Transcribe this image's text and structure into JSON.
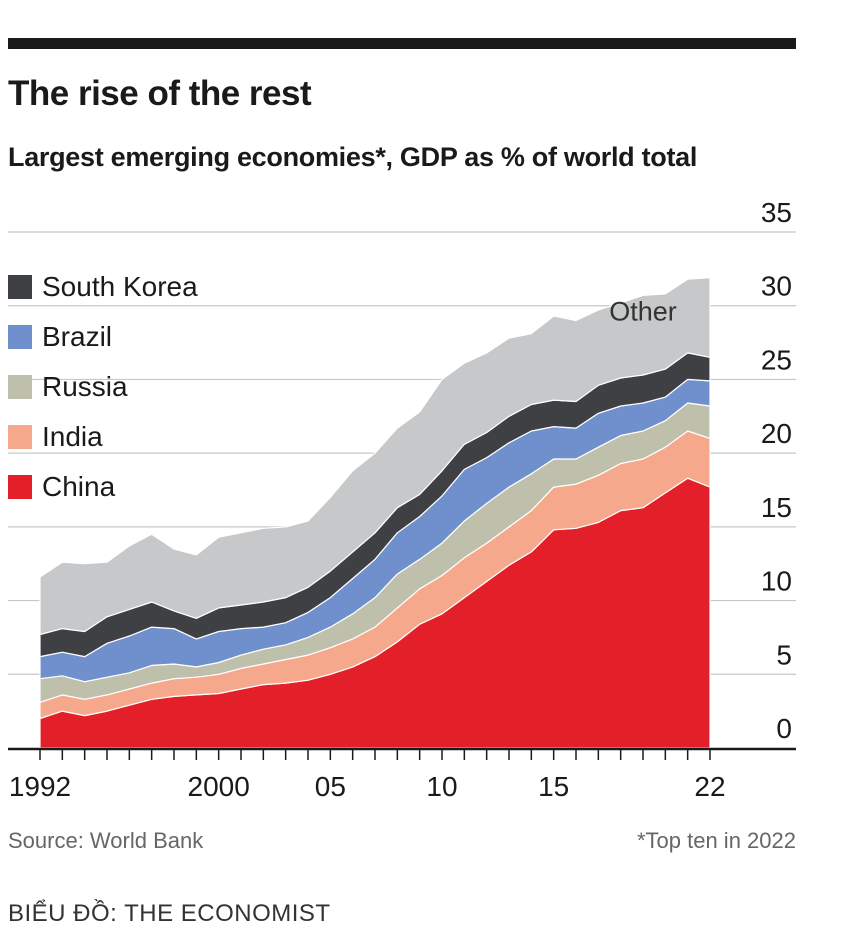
{
  "header": {
    "title": "The rise of the rest",
    "subtitle": "Largest emerging economies*, GDP as % of world total"
  },
  "footer": {
    "source": "Source: World Bank",
    "footnote": "*Top ten in 2022",
    "credit": "BIỂU ĐỒ: THE ECONOMIST"
  },
  "colors": {
    "China": "#e3202a",
    "India": "#f5a88c",
    "Russia": "#bfc0ab",
    "Brazil": "#6f90cc",
    "South Korea": "#3f4043",
    "Other": "#c6c8ca"
  },
  "legend": [
    {
      "name": "South Korea",
      "color": "#3f4043"
    },
    {
      "name": "Brazil",
      "color": "#6f90cc"
    },
    {
      "name": "Russia",
      "color": "#bfc0ab"
    },
    {
      "name": "India",
      "color": "#f5a88c"
    },
    {
      "name": "China",
      "color": "#e3202a"
    }
  ],
  "chart_data": {
    "type": "area",
    "stacked": true,
    "title": "The rise of the rest",
    "subtitle": "Largest emerging economies*, GDP as % of world total",
    "x": [
      1992,
      1993,
      1994,
      1995,
      1996,
      1997,
      1998,
      1999,
      2000,
      2001,
      2002,
      2003,
      2004,
      2005,
      2006,
      2007,
      2008,
      2009,
      2010,
      2011,
      2012,
      2013,
      2014,
      2015,
      2016,
      2017,
      2018,
      2019,
      2020,
      2021,
      2022
    ],
    "x_tick_labels": [
      {
        "x": 1992,
        "label": "1992"
      },
      {
        "x": 2000,
        "label": "2000"
      },
      {
        "x": 2005,
        "label": "05"
      },
      {
        "x": 2010,
        "label": "10"
      },
      {
        "x": 2015,
        "label": "15"
      },
      {
        "x": 2022,
        "label": "22"
      }
    ],
    "ylim": [
      0,
      35
    ],
    "yticks": [
      0,
      5,
      10,
      15,
      20,
      25,
      30,
      35
    ],
    "grid": true,
    "legend_position": "top-left",
    "annotation": "Other",
    "series": [
      {
        "name": "China",
        "values": [
          2.0,
          2.5,
          2.2,
          2.5,
          2.9,
          3.3,
          3.5,
          3.6,
          3.7,
          4.0,
          4.3,
          4.4,
          4.6,
          5.0,
          5.5,
          6.2,
          7.2,
          8.4,
          9.1,
          10.2,
          11.3,
          12.4,
          13.3,
          14.8,
          14.9,
          15.3,
          16.1,
          16.3,
          17.3,
          18.3,
          17.7
        ]
      },
      {
        "name": "India",
        "values": [
          1.1,
          1.1,
          1.1,
          1.1,
          1.1,
          1.1,
          1.2,
          1.2,
          1.3,
          1.4,
          1.4,
          1.6,
          1.7,
          1.8,
          1.9,
          2.0,
          2.3,
          2.4,
          2.6,
          2.7,
          2.6,
          2.6,
          2.8,
          2.9,
          3.0,
          3.2,
          3.2,
          3.3,
          3.1,
          3.2,
          3.3
        ]
      },
      {
        "name": "Russia",
        "values": [
          1.6,
          1.3,
          1.2,
          1.2,
          1.1,
          1.2,
          1.0,
          0.7,
          0.8,
          0.9,
          1.0,
          1.0,
          1.2,
          1.4,
          1.7,
          2.0,
          2.3,
          2.0,
          2.2,
          2.5,
          2.7,
          2.7,
          2.5,
          1.9,
          1.7,
          1.9,
          1.9,
          1.9,
          1.8,
          1.9,
          2.2
        ]
      },
      {
        "name": "Brazil",
        "values": [
          1.5,
          1.6,
          1.7,
          2.3,
          2.5,
          2.6,
          2.4,
          1.9,
          2.1,
          1.8,
          1.5,
          1.5,
          1.7,
          2.0,
          2.4,
          2.6,
          2.8,
          2.9,
          3.2,
          3.5,
          3.1,
          3.0,
          2.9,
          2.2,
          2.1,
          2.3,
          2.0,
          1.9,
          1.6,
          1.6,
          1.7
        ]
      },
      {
        "name": "South Korea",
        "values": [
          1.5,
          1.6,
          1.7,
          1.8,
          1.8,
          1.7,
          1.2,
          1.4,
          1.6,
          1.6,
          1.7,
          1.7,
          1.7,
          1.8,
          1.8,
          1.8,
          1.7,
          1.5,
          1.7,
          1.7,
          1.7,
          1.8,
          1.8,
          1.8,
          1.8,
          1.9,
          1.9,
          1.9,
          1.9,
          1.8,
          1.6
        ]
      },
      {
        "name": "Other",
        "values": [
          3.9,
          4.5,
          4.6,
          3.7,
          4.3,
          4.6,
          4.2,
          4.3,
          4.8,
          4.9,
          5.0,
          4.8,
          4.5,
          5.0,
          5.5,
          5.4,
          5.4,
          5.6,
          6.2,
          5.5,
          5.4,
          5.3,
          4.8,
          5.7,
          5.5,
          5.1,
          5.1,
          5.4,
          5.1,
          5.0,
          5.4
        ]
      }
    ]
  }
}
